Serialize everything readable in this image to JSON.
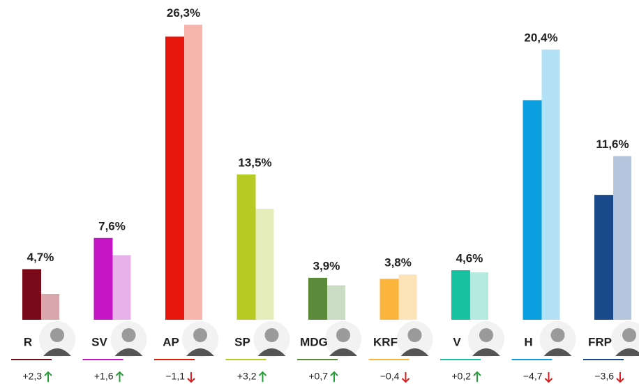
{
  "chart_data": {
    "type": "bar",
    "categories": [
      "R",
      "SV",
      "AP",
      "SP",
      "MDG",
      "KRF",
      "V",
      "H",
      "FRP"
    ],
    "values": [
      4.7,
      7.6,
      26.3,
      13.5,
      3.9,
      3.8,
      4.6,
      20.4,
      11.6
    ],
    "value_labels": [
      "4,7%",
      "7,6%",
      "26,3%",
      "13,5%",
      "3,9%",
      "3,8%",
      "4,6%",
      "20,4%",
      "11,6%"
    ],
    "previous_values": [
      2.4,
      6.0,
      27.4,
      10.3,
      3.2,
      4.2,
      4.4,
      25.1,
      15.2
    ],
    "changes": [
      2.3,
      1.6,
      -1.1,
      3.2,
      0.7,
      -0.4,
      0.2,
      -4.7,
      -3.6
    ],
    "change_labels": [
      "+2,3",
      "+1,6",
      "−1,1",
      "+3,2",
      "+0,7",
      "−0,4",
      "+0,2",
      "−4,7",
      "−3,6"
    ],
    "colors": [
      "#7a0a1a",
      "#c416c4",
      "#e8170e",
      "#b5cb24",
      "#5b8a3a",
      "#fcb53c",
      "#17c3a3",
      "#0b9fe0",
      "#1b4a8c"
    ],
    "previous_colors": [
      "#d9a6ab",
      "#e9b1ea",
      "#f7b5ae",
      "#e5edbb",
      "#cbdcc4",
      "#fde3b8",
      "#b4eadf",
      "#b2e1f6",
      "#b5c5de"
    ],
    "up_color": "#2a9d3a",
    "down_color": "#d42020",
    "ylim": [
      0,
      29.7
    ]
  }
}
